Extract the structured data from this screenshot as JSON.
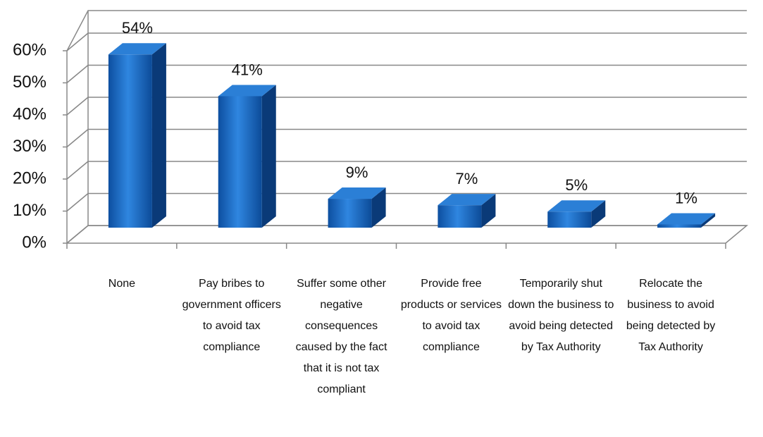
{
  "chart_data": {
    "type": "bar3d",
    "categories": [
      "None",
      "Pay bribes to government officers to avoid tax compliance",
      "Suffer some other negative consequences caused by the fact that it is not tax compliant",
      "Provide free products or services to avoid tax compliance",
      "Temporarily shut down the business to avoid being detected by Tax Authority",
      "Relocate the business to avoid being detected by Tax Authority"
    ],
    "values": [
      54,
      41,
      9,
      7,
      5,
      1
    ],
    "value_labels": [
      "54%",
      "41%",
      "9%",
      "7%",
      "5%",
      "1%"
    ],
    "color": "#1565c0",
    "ylim": [
      0,
      60
    ],
    "yticks": [
      {
        "value": 0,
        "label": "0%"
      },
      {
        "value": 10,
        "label": "10%"
      },
      {
        "value": 20,
        "label": "20%"
      },
      {
        "value": 30,
        "label": "30%"
      },
      {
        "value": 40,
        "label": "40%"
      },
      {
        "value": 50,
        "label": "50%"
      },
      {
        "value": 60,
        "label": "60%"
      }
    ],
    "grid": true
  }
}
